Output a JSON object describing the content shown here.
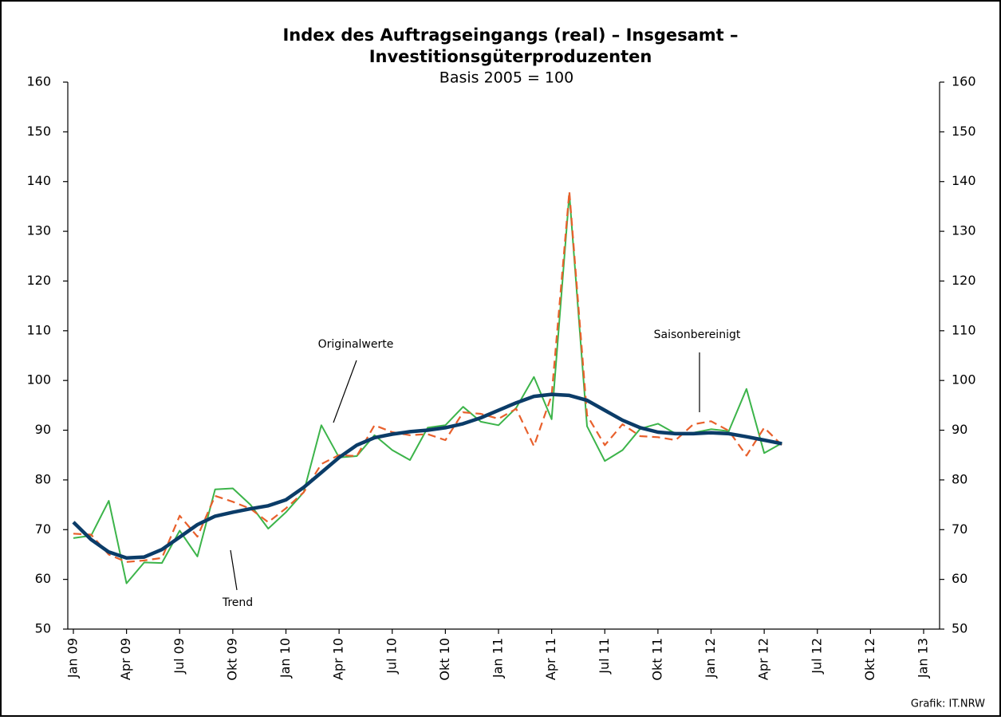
{
  "chart_data": {
    "type": "line",
    "title": [
      "Index des Auftragseingangs (real) – Insgesamt –",
      "Investitionsgüterproduzenten"
    ],
    "subtitle": "Basis 2005 = 100",
    "source": "Grafik: IT.NRW",
    "categories": [
      "Jan 09",
      null,
      null,
      "Apr 09",
      null,
      null,
      "Jul 09",
      null,
      null,
      "Okt 09",
      null,
      null,
      "Jan 10",
      null,
      null,
      "Apr 10",
      null,
      null,
      "Jul 10",
      null,
      null,
      "Okt 10",
      null,
      null,
      "Jan 11",
      null,
      null,
      "Apr 11",
      null,
      null,
      "Jul 11",
      null,
      null,
      "Okt 11",
      null,
      null,
      "Jan 12",
      null,
      null,
      "Apr 12",
      null,
      null,
      "Jul 12",
      null,
      null,
      "Okt 12",
      null,
      null,
      "Jan 13"
    ],
    "series": [
      {
        "name": "Originalwerte",
        "color": "#3cb44a",
        "style": "solid",
        "values": [
          68.3,
          68.8,
          75.8,
          59.2,
          63.4,
          63.3,
          69.8,
          64.6,
          78.1,
          78.3,
          75,
          70.2,
          73.5,
          77.5,
          91,
          84.5,
          84.8,
          89,
          86,
          84,
          90.5,
          91,
          94.7,
          91.7,
          91,
          94.5,
          100.7,
          92.2,
          137.5,
          90.8,
          83.8,
          86,
          90.3,
          91.3,
          89.3,
          89.5,
          90.2,
          89.8,
          98.3,
          85.4,
          87.4,
          null,
          null,
          null,
          null,
          null,
          null,
          null,
          null
        ]
      },
      {
        "name": "Saisonbereinigt",
        "color": "#e8602c",
        "style": "dashed",
        "values": [
          69.2,
          69,
          65,
          63.5,
          63.8,
          64.3,
          72.8,
          68.6,
          76.8,
          75.6,
          74.2,
          71.5,
          74.3,
          77.5,
          83.2,
          85,
          84.8,
          91,
          89.6,
          89,
          89.2,
          88,
          93.6,
          93.3,
          92.3,
          94.3,
          86.8,
          97,
          138,
          93,
          87,
          91.2,
          88.8,
          88.6,
          88,
          91.2,
          91.8,
          89.9,
          84.9,
          90.5,
          87,
          null,
          null,
          null,
          null,
          null,
          null,
          null,
          null
        ]
      },
      {
        "name": "Trend",
        "color": "#0b3c68",
        "style": "thick",
        "values": [
          71.5,
          68,
          65.5,
          64.3,
          64.5,
          66,
          68.5,
          71,
          72.7,
          73.5,
          74.2,
          74.8,
          76,
          78.5,
          81.5,
          84.5,
          87,
          88.5,
          89.2,
          89.7,
          90,
          90.5,
          91.3,
          92.5,
          94,
          95.5,
          96.8,
          97.2,
          97,
          96,
          94,
          92,
          90.5,
          89.6,
          89.3,
          89.3,
          89.5,
          89.3,
          88.7,
          88,
          87.3,
          null,
          null,
          null,
          null,
          null,
          null,
          null,
          null
        ]
      }
    ],
    "ylim": [
      50,
      160
    ],
    "yticks": [
      50,
      60,
      70,
      80,
      90,
      100,
      110,
      120,
      130,
      140,
      150,
      160
    ],
    "y2lim": [
      50,
      160
    ],
    "y2ticks": [
      50,
      60,
      70,
      80,
      90,
      100,
      110,
      120,
      130,
      140,
      150,
      160
    ],
    "grid": false
  }
}
